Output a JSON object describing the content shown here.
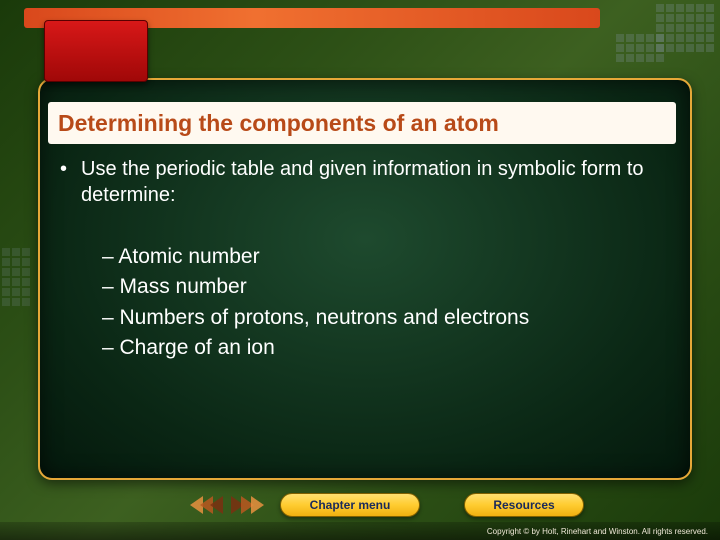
{
  "colors": {
    "title_text": "#b84a18",
    "body_text": "#ffffff",
    "panel_border": "#e6a838",
    "pill_text": "#1a2a5a"
  },
  "header": {
    "title": "Determining the components of an atom"
  },
  "content": {
    "main_bullet": "Use the periodic table and given information in symbolic form to determine:",
    "sub_items": [
      "Atomic number",
      "Mass number",
      "Numbers of protons, neutrons and electrons",
      "Charge of an ion"
    ]
  },
  "nav": {
    "chapter_label": "Chapter menu",
    "resources_label": "Resources"
  },
  "footer": {
    "copyright": "Copyright © by Holt, Rinehart and Winston. All rights reserved."
  }
}
